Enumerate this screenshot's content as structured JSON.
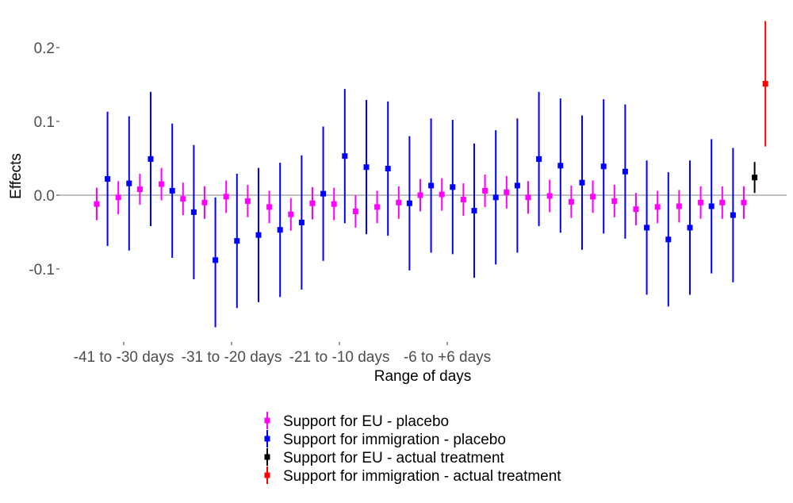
{
  "chart_data": {
    "type": "scatter",
    "subtype": "point-range",
    "title": "",
    "xlabel": "Range of days",
    "ylabel": "Effects",
    "ylim": [
      -0.18,
      0.235
    ],
    "y_ticks": [
      -0.1,
      0.0,
      0.1,
      0.2
    ],
    "y_tick_labels": [
      "-0.1",
      "0.0",
      "0.1",
      "0.2"
    ],
    "reference_line_y": 0,
    "grid": false,
    "x_tick_labels": [
      "-41 to -30 days",
      "-31 to -20 days",
      "-21 to -10 days",
      "-6 to +6 days"
    ],
    "x_tick_positions": [
      3.5,
      13.5,
      23.5,
      33.5
    ],
    "legend_position": "bottom",
    "series": [
      {
        "name": "Support for EU - placebo",
        "color": "#ff00ff",
        "x": [
          1,
          3,
          5,
          7,
          9,
          11,
          13,
          15,
          17,
          19,
          21,
          23,
          25,
          27,
          29,
          31,
          33,
          35,
          37,
          39,
          41,
          43,
          45,
          47,
          49,
          51,
          53,
          55,
          57,
          59,
          61
        ],
        "estimate": [
          -0.012,
          -0.003,
          0.008,
          0.015,
          -0.005,
          -0.01,
          -0.002,
          -0.008,
          -0.016,
          -0.026,
          -0.011,
          -0.012,
          -0.022,
          -0.016,
          -0.01,
          0.0,
          0.001,
          -0.006,
          0.006,
          0.004,
          -0.003,
          -0.001,
          -0.009,
          -0.002,
          -0.008,
          -0.019,
          -0.016,
          -0.015,
          -0.01,
          -0.01,
          -0.01
        ],
        "lower": [
          -0.034,
          -0.026,
          -0.013,
          -0.007,
          -0.027,
          -0.032,
          -0.024,
          -0.03,
          -0.038,
          -0.048,
          -0.033,
          -0.034,
          -0.044,
          -0.038,
          -0.032,
          -0.022,
          -0.021,
          -0.028,
          -0.016,
          -0.018,
          -0.025,
          -0.023,
          -0.031,
          -0.024,
          -0.03,
          -0.041,
          -0.038,
          -0.037,
          -0.032,
          -0.032,
          -0.032
        ],
        "upper": [
          0.01,
          0.019,
          0.029,
          0.037,
          0.017,
          0.012,
          0.02,
          0.014,
          0.006,
          -0.004,
          0.011,
          0.01,
          0.0,
          0.006,
          0.012,
          0.022,
          0.023,
          0.016,
          0.028,
          0.026,
          0.019,
          0.021,
          0.013,
          0.02,
          0.014,
          0.003,
          0.006,
          0.007,
          0.012,
          0.012,
          0.012
        ]
      },
      {
        "name": "Support for immigration - placebo",
        "color": "#0000ff",
        "x": [
          2,
          4,
          6,
          8,
          10,
          12,
          14,
          16,
          18,
          20,
          22,
          24,
          26,
          28,
          30,
          32,
          34,
          36,
          38,
          40,
          42,
          44,
          46,
          48,
          50,
          52,
          54,
          56,
          58,
          60
        ],
        "estimate": [
          0.022,
          0.016,
          0.049,
          0.006,
          -0.023,
          -0.088,
          -0.062,
          -0.054,
          -0.047,
          -0.037,
          0.002,
          0.053,
          0.038,
          0.036,
          -0.011,
          0.013,
          0.011,
          -0.021,
          -0.003,
          0.013,
          0.049,
          0.04,
          0.017,
          0.039,
          0.032,
          -0.044,
          -0.06,
          -0.044,
          -0.015,
          -0.027
        ],
        "lower": [
          -0.069,
          -0.075,
          -0.042,
          -0.085,
          -0.114,
          -0.179,
          -0.153,
          -0.145,
          -0.138,
          -0.128,
          -0.089,
          -0.038,
          -0.053,
          -0.055,
          -0.102,
          -0.078,
          -0.08,
          -0.112,
          -0.094,
          -0.078,
          -0.042,
          -0.051,
          -0.074,
          -0.052,
          -0.059,
          -0.135,
          -0.151,
          -0.135,
          -0.106,
          -0.118
        ],
        "upper": [
          0.113,
          0.107,
          0.14,
          0.097,
          0.068,
          -0.003,
          0.029,
          0.037,
          0.044,
          0.054,
          0.093,
          0.144,
          0.129,
          0.127,
          0.08,
          0.104,
          0.102,
          0.07,
          0.088,
          0.104,
          0.14,
          0.131,
          0.108,
          0.13,
          0.123,
          0.047,
          0.031,
          0.047,
          0.076,
          0.064
        ]
      },
      {
        "name": "Support for EU - actual treatment",
        "color": "#000000",
        "x": [
          62
        ],
        "estimate": [
          0.024
        ],
        "lower": [
          0.003
        ],
        "upper": [
          0.045
        ]
      },
      {
        "name": "Support for immigration - actual treatment",
        "color": "#ff0000",
        "x": [
          63
        ],
        "estimate": [
          0.151
        ],
        "lower": [
          0.066
        ],
        "upper": [
          0.236
        ]
      }
    ]
  }
}
